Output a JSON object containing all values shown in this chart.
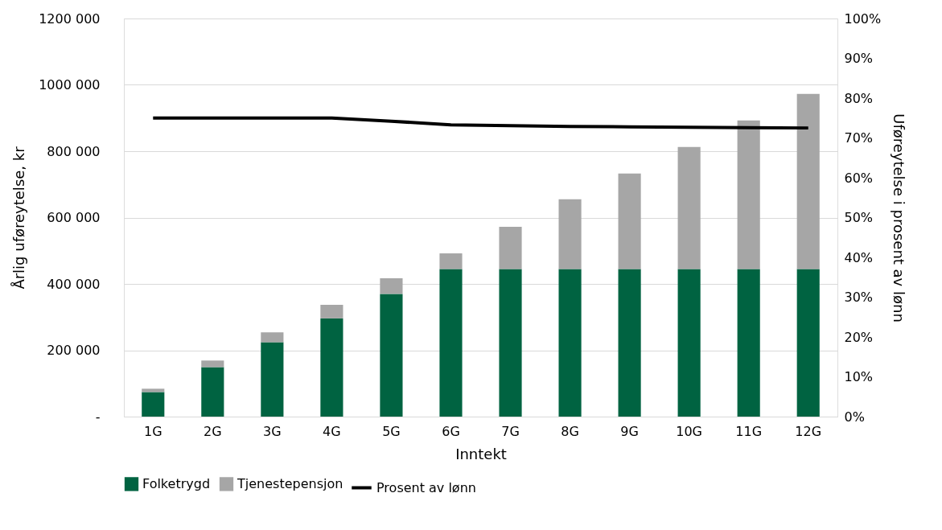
{
  "chart_data": {
    "type": "bar",
    "stacked": true,
    "xlabel": "Inntekt",
    "ylabel": "Årlig uføreytelse, kr",
    "y2label": "Uføreytelse i prosent av lønn",
    "categories": [
      "1G",
      "2G",
      "3G",
      "4G",
      "5G",
      "6G",
      "7G",
      "8G",
      "9G",
      "10G",
      "11G",
      "12G"
    ],
    "series": [
      {
        "name": "Folketrygd",
        "color": "#006341",
        "values": [
          74000,
          149000,
          224000,
          296000,
          370000,
          445000,
          445000,
          445000,
          445000,
          445000,
          445000,
          445000
        ]
      },
      {
        "name": "Tjenestepensjon",
        "color": "#a6a6a6",
        "values": [
          10000,
          20000,
          30000,
          41000,
          47000,
          47000,
          127000,
          210000,
          288000,
          368000,
          448000,
          528000
        ]
      },
      {
        "name": "Prosent av lønn",
        "type": "line",
        "axis": "y2",
        "color": "#000000",
        "values": [
          75,
          75,
          75,
          75,
          74.2,
          73.3,
          73.1,
          72.9,
          72.8,
          72.7,
          72.6,
          72.5
        ]
      }
    ],
    "ylim": [
      0,
      1200000
    ],
    "yticks": [
      {
        "value": 0,
        "label": "-"
      },
      {
        "value": 200000,
        "label": "200 000"
      },
      {
        "value": 400000,
        "label": "400 000"
      },
      {
        "value": 600000,
        "label": "600 000"
      },
      {
        "value": 800000,
        "label": "800 000"
      },
      {
        "value": 1000000,
        "label": "1000 000"
      },
      {
        "value": 1200000,
        "label": "1200 000"
      }
    ],
    "y2lim": [
      0,
      100
    ],
    "y2ticks": [
      {
        "value": 0,
        "label": "0%"
      },
      {
        "value": 10,
        "label": "10%"
      },
      {
        "value": 20,
        "label": "20%"
      },
      {
        "value": 30,
        "label": "30%"
      },
      {
        "value": 40,
        "label": "40%"
      },
      {
        "value": 50,
        "label": "50%"
      },
      {
        "value": 60,
        "label": "60%"
      },
      {
        "value": 70,
        "label": "70%"
      },
      {
        "value": 80,
        "label": "80%"
      },
      {
        "value": 90,
        "label": "90%"
      },
      {
        "value": 100,
        "label": "100%"
      }
    ],
    "grid": "y",
    "legend": "bottom",
    "line_style": "solid"
  }
}
